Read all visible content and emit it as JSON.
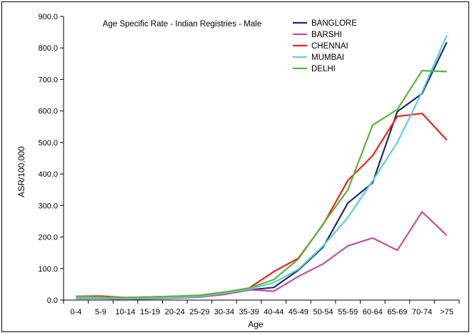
{
  "chart_data": {
    "type": "line",
    "title": "Age Specific Rate - Indian Registries - Male",
    "xlabel": "Age",
    "ylabel": "ASR/100,000",
    "ylim": [
      0,
      900
    ],
    "yticks": [
      "0.0",
      "100.0",
      "200.0",
      "300.0",
      "400.0",
      "500.0",
      "600.0",
      "700.0",
      "800.0",
      "900.0"
    ],
    "categories": [
      "0-4",
      "5-9",
      "10-14",
      "15-19",
      "20-24",
      "25-29",
      "30-34",
      "35-39",
      "40-44",
      "45-49",
      "50-54",
      "55-59",
      "60-64",
      "65-69",
      "70-74",
      ">75"
    ],
    "grid": false,
    "legend_position": "top-right",
    "series": [
      {
        "name": "BANGLORE",
        "color": "#1f2a6e",
        "values": [
          8,
          8,
          5,
          5,
          8,
          10,
          18,
          32,
          40,
          95,
          168,
          308,
          372,
          598,
          655,
          818
        ]
      },
      {
        "name": "BARSHI",
        "color": "#c0509e",
        "values": [
          5,
          5,
          3,
          4,
          6,
          10,
          18,
          33,
          28,
          75,
          115,
          172,
          197,
          158,
          280,
          205
        ]
      },
      {
        "name": "CHENNAI",
        "color": "#e8231f",
        "values": [
          12,
          13,
          8,
          10,
          12,
          15,
          25,
          38,
          90,
          133,
          240,
          380,
          458,
          583,
          592,
          508
        ]
      },
      {
        "name": "MUMBAI",
        "color": "#5bcfe0",
        "values": [
          7,
          6,
          5,
          6,
          8,
          12,
          22,
          35,
          55,
          98,
          172,
          262,
          378,
          500,
          660,
          840
        ]
      },
      {
        "name": "DELHI",
        "color": "#5db43c",
        "values": [
          12,
          10,
          8,
          10,
          12,
          15,
          25,
          38,
          65,
          130,
          242,
          350,
          555,
          605,
          728,
          725
        ]
      }
    ]
  }
}
